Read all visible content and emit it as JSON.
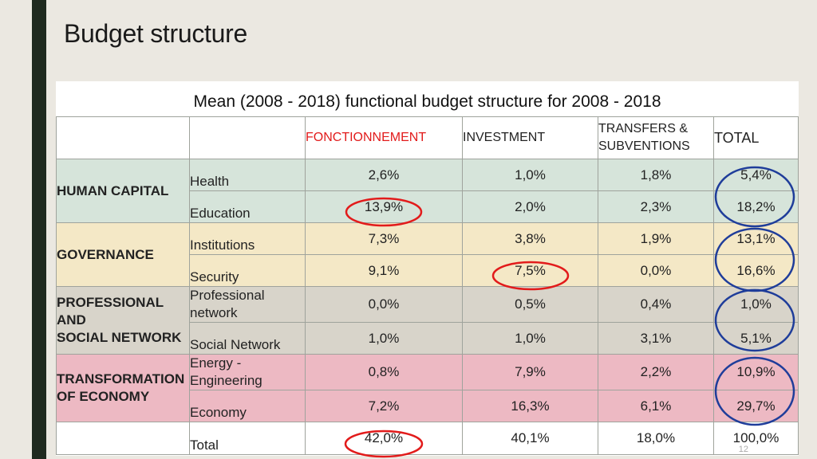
{
  "title": "Budget structure",
  "table": {
    "caption": "Mean (2008 - 2018) functional budget structure for 2008 - 2018",
    "headers": {
      "fonctionnement": "FONCTIONNEMENT",
      "investment": "INVESTMENT",
      "transfers_line1": "TRANSFERS &",
      "transfers_line2": "SUBVENTIONS",
      "total": "TOTAL"
    },
    "groups": {
      "human_capital": "HUMAN CAPITAL",
      "governance": "GOVERNANCE",
      "professional_line1": "PROFESSIONAL AND",
      "professional_line2": "SOCIAL NETWORK",
      "transformation_line1": "TRANSFORMATION",
      "transformation_line2": "OF ECONOMY"
    },
    "rows": [
      {
        "label": "Health",
        "fonctionnement": "2,6%",
        "investment": "1,0%",
        "transfers": "1,8%",
        "total": "5,4%"
      },
      {
        "label": "Education",
        "fonctionnement": "13,9%",
        "investment": "2,0%",
        "transfers": "2,3%",
        "total": "18,2%"
      },
      {
        "label": "Institutions",
        "fonctionnement": "7,3%",
        "investment": "3,8%",
        "transfers": "1,9%",
        "total": "13,1%"
      },
      {
        "label": "Security",
        "fonctionnement": "9,1%",
        "investment": "7,5%",
        "transfers": "0,0%",
        "total": "16,6%"
      },
      {
        "label_line1": "Professional",
        "label_line2": "network",
        "fonctionnement": "0,0%",
        "investment": "0,5%",
        "transfers": "0,4%",
        "total": "1,0%"
      },
      {
        "label": "Social Network",
        "fonctionnement": "1,0%",
        "investment": "1,0%",
        "transfers": "3,1%",
        "total": "5,1%"
      },
      {
        "label_line1": "Energy -",
        "label_line2": "Engineering",
        "fonctionnement": "0,8%",
        "investment": "7,9%",
        "transfers": "2,2%",
        "total": "10,9%"
      },
      {
        "label": "Economy",
        "fonctionnement": "7,2%",
        "investment": "16,3%",
        "transfers": "6,1%",
        "total": "29,7%"
      }
    ],
    "total_row": {
      "label": "Total",
      "fonctionnement": "42,0%",
      "investment": "40,1%",
      "transfers": "18,0%",
      "total": "100,0%"
    }
  },
  "page_number": "12",
  "colors": {
    "human_capital": "#d6e4da",
    "governance": "#f4e8c6",
    "professional_social": "#d8d4ca",
    "transformation": "#edb9c3",
    "total_text": "#1f6fd1",
    "red_marks": "#e21b1b",
    "blue_marks": "#1f3d9a"
  }
}
